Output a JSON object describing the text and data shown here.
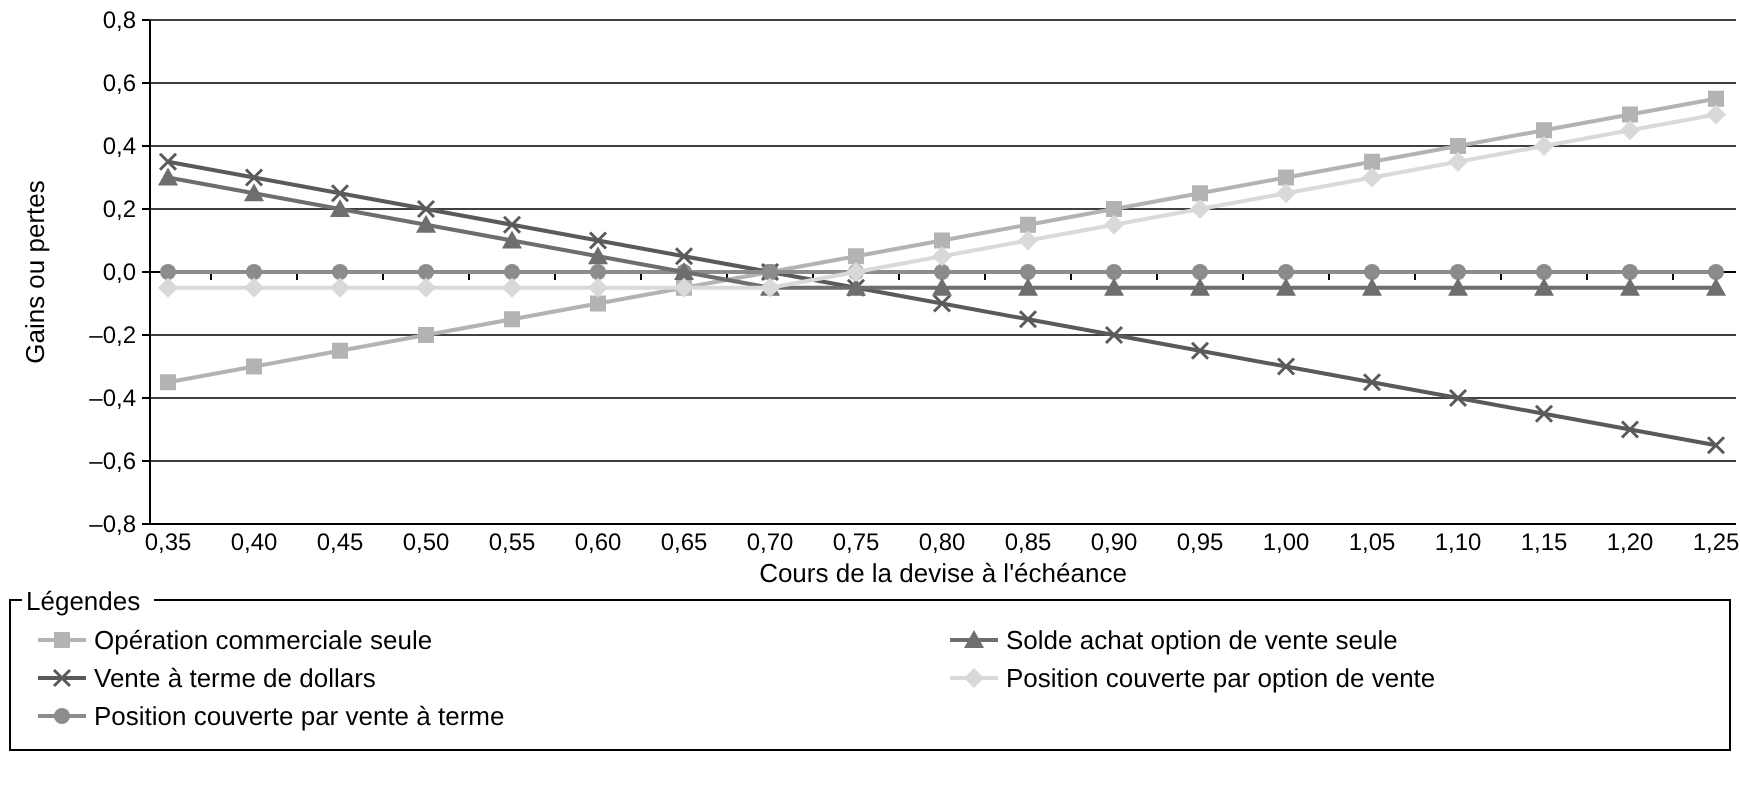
{
  "chart_data": {
    "type": "line",
    "xlabel": "Cours de la devise à l'échéance",
    "ylabel": "Gains ou pertes",
    "legend_title": "Légendes",
    "legend": "bottom",
    "grid": "y",
    "line_style": "solid",
    "categories": [
      "0,35",
      "0,40",
      "0,45",
      "0,50",
      "0,55",
      "0,60",
      "0,65",
      "0,70",
      "0,75",
      "0,80",
      "0,85",
      "0,90",
      "0,95",
      "1,00",
      "1,05",
      "1,10",
      "1,15",
      "1,20",
      "1,25"
    ],
    "ylim": [
      -0.8,
      0.8
    ],
    "yticks": [
      {
        "value": -0.8,
        "label": "–0,8"
      },
      {
        "value": -0.6,
        "label": "–0,6"
      },
      {
        "value": -0.4,
        "label": "–0,4"
      },
      {
        "value": -0.2,
        "label": "–0,2"
      },
      {
        "value": 0,
        "label": "0,0"
      },
      {
        "value": 0.2,
        "label": "0,2"
      },
      {
        "value": 0.4,
        "label": "0,4"
      },
      {
        "value": 0.6,
        "label": "0,6"
      },
      {
        "value": 0.8,
        "label": "0,8"
      }
    ],
    "series": [
      {
        "name": "Opération commerciale seule",
        "color": "#b3b3b3",
        "marker": "square",
        "values": [
          -0.35,
          -0.3,
          -0.25,
          -0.2,
          -0.15,
          -0.1,
          -0.05,
          0,
          0.05,
          0.1,
          0.15,
          0.2,
          0.25,
          0.3,
          0.35,
          0.4,
          0.45,
          0.5,
          0.55
        ]
      },
      {
        "name": "Vente à terme de dollars",
        "color": "#5a5a5a",
        "marker": "cross",
        "values": [
          0.35,
          0.3,
          0.25,
          0.2,
          0.15,
          0.1,
          0.05,
          0,
          -0.05,
          -0.1,
          -0.15,
          -0.2,
          -0.25,
          -0.3,
          -0.35,
          -0.4,
          -0.45,
          -0.5,
          -0.55
        ]
      },
      {
        "name": "Position couverte par vente à terme",
        "color": "#8c8c8c",
        "marker": "circle",
        "values": [
          0,
          0,
          0,
          0,
          0,
          0,
          0,
          0,
          0,
          0,
          0,
          0,
          0,
          0,
          0,
          0,
          0,
          0,
          0
        ]
      },
      {
        "name": "Solde achat option de vente seule",
        "color": "#6e6e6e",
        "marker": "triangle",
        "values": [
          0.3,
          0.25,
          0.2,
          0.15,
          0.1,
          0.05,
          0,
          -0.05,
          -0.05,
          -0.05,
          -0.05,
          -0.05,
          -0.05,
          -0.05,
          -0.05,
          -0.05,
          -0.05,
          -0.05,
          -0.05
        ]
      },
      {
        "name": "Position couverte par option de vente",
        "color": "#d9d9d9",
        "marker": "diamond",
        "values": [
          -0.05,
          -0.05,
          -0.05,
          -0.05,
          -0.05,
          -0.05,
          -0.05,
          -0.05,
          0,
          0.05,
          0.1,
          0.15,
          0.2,
          0.25,
          0.3,
          0.35,
          0.4,
          0.45,
          0.5
        ]
      }
    ]
  }
}
